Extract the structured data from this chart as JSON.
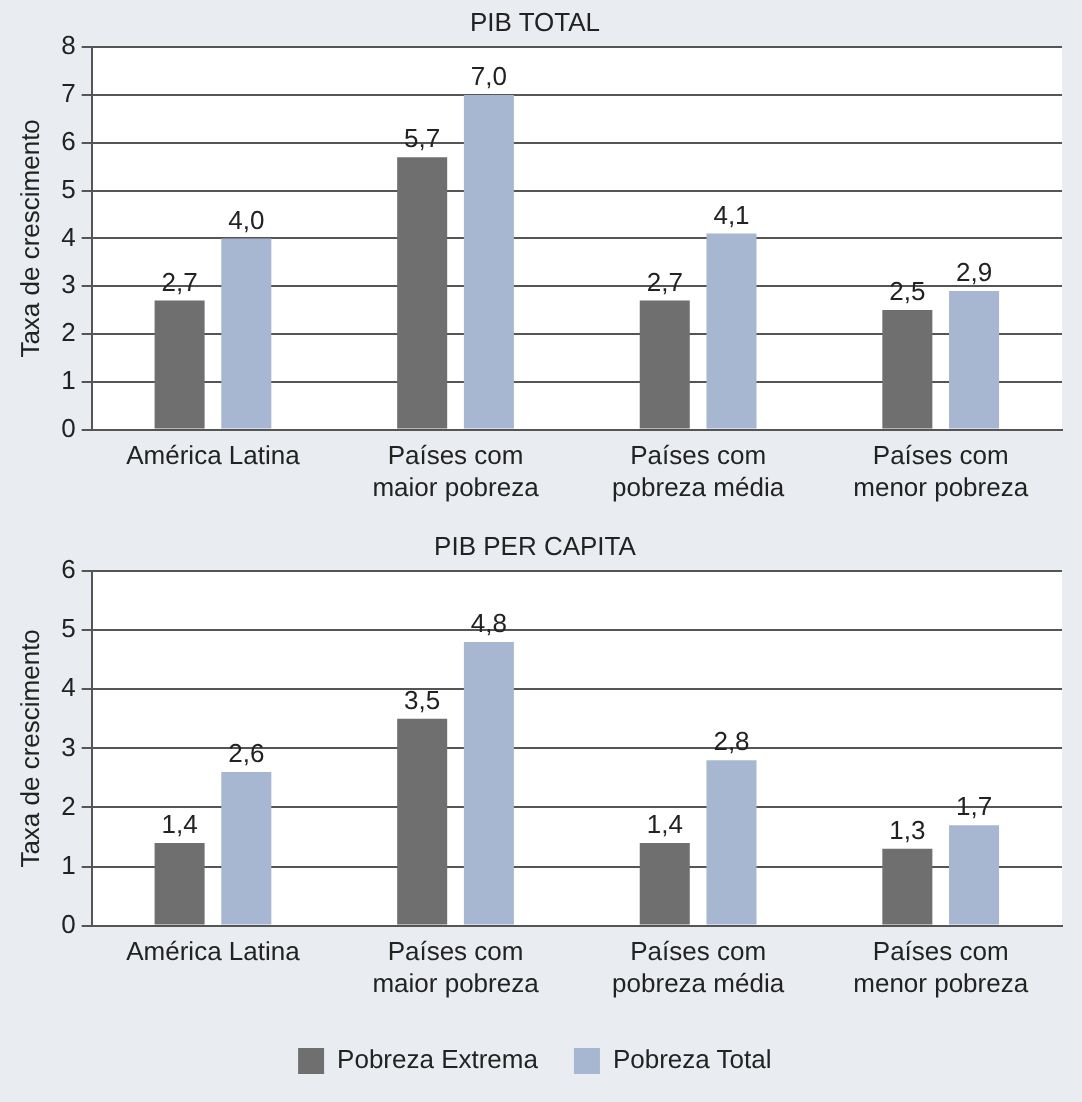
{
  "chart_data": [
    {
      "type": "bar",
      "title": "PIB TOTAL",
      "ylabel": "Taxa de crescimento",
      "categories": [
        "América Latina",
        "Países com\nmaior pobreza",
        "Países com\npobreza média",
        "Países com\nmenor pobreza"
      ],
      "series": [
        {
          "color": "#6f6f6f",
          "values": [
            2.7,
            5.7,
            2.7,
            2.5
          ],
          "value_labels": [
            "2,7",
            "5,7",
            "2,7",
            "2,5"
          ]
        },
        {
          "color": "#a7b7d1",
          "values": [
            4.0,
            7.0,
            4.1,
            2.9
          ],
          "value_labels": [
            "4,0",
            "7,0",
            "4,1",
            "2,9"
          ]
        }
      ],
      "ylim": [
        0,
        8
      ],
      "yticks": [
        0,
        1,
        2,
        3,
        4,
        5,
        6,
        7,
        8
      ],
      "grid": "y",
      "legend": false
    },
    {
      "type": "bar",
      "title": "PIB PER CAPITA",
      "ylabel": "Taxa de crescimento",
      "categories": [
        "América Latina",
        "Países com\nmaior pobreza",
        "Países com\npobreza média",
        "Países com\nmenor pobreza"
      ],
      "series": [
        {
          "name": "Pobreza Extrema",
          "color": "#6f6f6f",
          "values": [
            1.4,
            3.5,
            1.4,
            1.3
          ],
          "value_labels": [
            "1,4",
            "3,5",
            "1,4",
            "1,3"
          ]
        },
        {
          "name": "Pobreza Total",
          "color": "#a7b7d1",
          "values": [
            2.6,
            4.8,
            2.8,
            1.7
          ],
          "value_labels": [
            "2,6",
            "4,8",
            "2,8",
            "1,7"
          ]
        }
      ],
      "ylim": [
        0,
        6
      ],
      "yticks": [
        0,
        1,
        2,
        3,
        4,
        5,
        6
      ],
      "grid": "y",
      "legend": "bottom"
    }
  ]
}
